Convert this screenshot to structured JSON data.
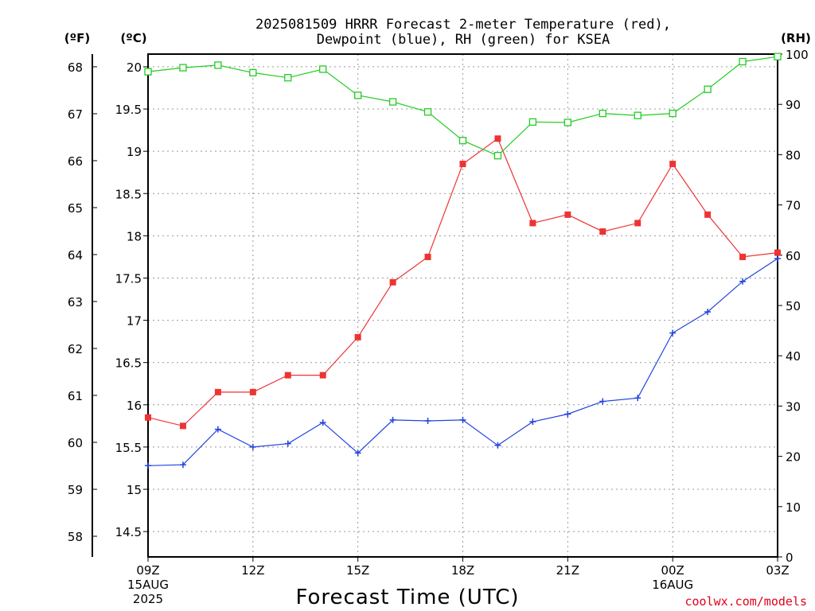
{
  "title_line1": "2025081509 HRRR Forecast 2-meter Temperature (red),",
  "title_line2": "Dewpoint (blue), RH (green) for KSEA",
  "credit": "coolwx.com/models",
  "units": {
    "fahrenheit": "(ºF)",
    "celsius": "(ºC)",
    "rh": "(RH)"
  },
  "colors": {
    "temperature": "#ee3333",
    "dewpoint": "#2244dd",
    "rh": "#22cc22",
    "grid": "#999999"
  },
  "chart_data": {
    "type": "line",
    "title": "2025081509 HRRR Forecast 2-meter Temperature (red), Dewpoint (blue), RH (green) for KSEA",
    "xlabel": "Forecast Time (UTC)",
    "x_hours": [
      9,
      10,
      11,
      12,
      13,
      14,
      15,
      16,
      17,
      18,
      19,
      20,
      21,
      22,
      23,
      24,
      25,
      26,
      27
    ],
    "xlim": [
      9,
      27
    ],
    "x_ticks": [
      {
        "hour": 9,
        "label": "09Z",
        "sub1": "15AUG",
        "sub2": "2025"
      },
      {
        "hour": 12,
        "label": "12Z",
        "sub1": "",
        "sub2": ""
      },
      {
        "hour": 15,
        "label": "15Z",
        "sub1": "",
        "sub2": ""
      },
      {
        "hour": 18,
        "label": "18Z",
        "sub1": "",
        "sub2": ""
      },
      {
        "hour": 21,
        "label": "21Z",
        "sub1": "",
        "sub2": ""
      },
      {
        "hour": 24,
        "label": "00Z",
        "sub1": "16AUG",
        "sub2": ""
      },
      {
        "hour": 27,
        "label": "03Z",
        "sub1": "",
        "sub2": ""
      }
    ],
    "y_celsius": {
      "ylim": [
        14.2,
        20.15
      ],
      "ticks": [
        "14.5",
        "15",
        "15.5",
        "16",
        "16.5",
        "17",
        "17.5",
        "18",
        "18.5",
        "19",
        "19.5",
        "20"
      ]
    },
    "y_fahrenheit": {
      "ticks": [
        "58",
        "59",
        "60",
        "61",
        "62",
        "63",
        "64",
        "65",
        "66",
        "67",
        "68"
      ]
    },
    "y_rh": {
      "ylim": [
        0,
        100
      ],
      "ticks": [
        "0",
        "10",
        "20",
        "30",
        "40",
        "50",
        "60",
        "70",
        "80",
        "90",
        "100"
      ]
    },
    "series": [
      {
        "name": "Temperature",
        "unit": "C",
        "marker": "filled-square",
        "values": [
          15.85,
          15.75,
          16.15,
          16.15,
          16.35,
          16.35,
          16.8,
          17.45,
          17.75,
          18.85,
          19.15,
          18.15,
          18.25,
          18.05,
          18.15,
          18.85,
          18.25,
          17.75,
          17.8
        ]
      },
      {
        "name": "Dewpoint",
        "unit": "C",
        "marker": "plus",
        "values": [
          15.28,
          15.29,
          15.71,
          15.5,
          15.54,
          15.79,
          15.43,
          15.82,
          15.81,
          15.82,
          15.52,
          15.8,
          15.89,
          16.04,
          16.08,
          16.85,
          17.1,
          17.46,
          17.73
        ]
      },
      {
        "name": "RH",
        "unit": "%",
        "marker": "open-square",
        "values": [
          96.5,
          97.3,
          97.8,
          96.3,
          95.3,
          97.0,
          91.8,
          90.5,
          88.5,
          82.8,
          79.8,
          86.5,
          86.4,
          88.2,
          87.8,
          88.2,
          93.0,
          98.5,
          99.5
        ]
      }
    ]
  }
}
